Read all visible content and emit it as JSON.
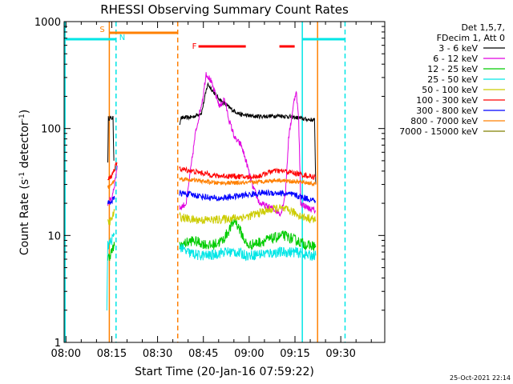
{
  "chart_data": {
    "type": "line",
    "title": "RHESSI Observing Summary Count Rates",
    "xlabel": "Start Time (20-Jan-16 07:59:22)",
    "ylabel_main": "Count Rate (s",
    "ylabel_sup1": "-1",
    "ylabel_mid": " detector",
    "ylabel_sup2": "-1",
    "ylabel_end": ")",
    "yscale": "log",
    "ylim": [
      1,
      1000
    ],
    "xlim": [
      0,
      105
    ],
    "x_units": "minutes after 07:59:22",
    "x_ticks": [
      {
        "t": 0.6,
        "label": "08:00"
      },
      {
        "t": 15.6,
        "label": "08:15"
      },
      {
        "t": 30.6,
        "label": "08:30"
      },
      {
        "t": 45.6,
        "label": "08:45"
      },
      {
        "t": 60.6,
        "label": "09:00"
      },
      {
        "t": 75.6,
        "label": "09:15"
      },
      {
        "t": 90.6,
        "label": "09:30"
      }
    ],
    "y_ticks": [
      {
        "v": 1,
        "label": "1"
      },
      {
        "v": 10,
        "label": "10"
      },
      {
        "v": 100,
        "label": "100"
      },
      {
        "v": 1000,
        "label": "1000"
      }
    ],
    "legend": {
      "header1": "Det 1,5,7,",
      "header2": "FDecim 1, Att 0",
      "placement": "right",
      "entries": [
        {
          "label": "3 - 6 keV",
          "color": "#000000"
        },
        {
          "label": "6 - 12 keV",
          "color": "#e000e0"
        },
        {
          "label": "12 - 25 keV",
          "color": "#00cc00"
        },
        {
          "label": "25 - 50 keV",
          "color": "#00e6e6"
        },
        {
          "label": "50 - 100 keV",
          "color": "#cccc00"
        },
        {
          "label": "100 - 300 keV",
          "color": "#ff0000"
        },
        {
          "label": "300 - 800 keV",
          "color": "#0000ff"
        },
        {
          "label": "800 - 7000 keV",
          "color": "#ff8000"
        },
        {
          "label": "7000 - 15000 keV",
          "color": "#808000"
        }
      ]
    },
    "series": [
      {
        "band": "3 - 6 keV",
        "color": "#000000",
        "noise": 0.02,
        "segments": [
          [
            [
              14.3,
              50
            ],
            [
              14.5,
              125
            ],
            [
              16.0,
              125
            ],
            [
              16.3,
              50
            ]
          ],
          [
            [
              37.8,
              110
            ],
            [
              38.2,
              125
            ],
            [
              42,
              128
            ],
            [
              45,
              140
            ],
            [
              47,
              260
            ],
            [
              48,
              240
            ],
            [
              50,
              200
            ],
            [
              52,
              175
            ],
            [
              55,
              150
            ],
            [
              58,
              135
            ],
            [
              62,
              130
            ],
            [
              66,
              130
            ],
            [
              70,
              132
            ],
            [
              73,
              130
            ],
            [
              76.5,
              126
            ],
            [
              79,
              122
            ],
            [
              82,
              120
            ],
            [
              82.4,
              30
            ]
          ]
        ]
      },
      {
        "band": "6 - 12 keV",
        "color": "#e000e0",
        "noise": 0.03,
        "segments": [
          [
            [
              14.3,
              20
            ],
            [
              15.5,
              22
            ],
            [
              16.5,
              30
            ],
            [
              17.4,
              45
            ]
          ],
          [
            [
              37.8,
              18
            ],
            [
              40,
              20
            ],
            [
              43,
              90
            ],
            [
              45.5,
              200
            ],
            [
              46.5,
              330
            ],
            [
              48,
              280
            ],
            [
              49.5,
              210
            ],
            [
              51,
              160
            ],
            [
              52.5,
              190
            ],
            [
              54,
              120
            ],
            [
              56,
              80
            ],
            [
              58,
              70
            ],
            [
              60,
              45
            ],
            [
              61.5,
              30
            ],
            [
              64,
              20
            ],
            [
              68,
              18
            ],
            [
              71,
              16
            ],
            [
              72.5,
              25
            ],
            [
              73.5,
              80
            ],
            [
              75,
              160
            ],
            [
              76,
              230
            ],
            [
              76.8,
              120
            ],
            [
              77.5,
              20
            ],
            [
              80,
              18
            ],
            [
              82.4,
              17
            ]
          ]
        ]
      },
      {
        "band": "12 - 25 keV",
        "color": "#00cc00",
        "noise": 0.05,
        "segments": [
          [
            [
              14.3,
              6
            ],
            [
              15.5,
              7
            ],
            [
              16.5,
              8
            ]
          ],
          [
            [
              37.8,
              8
            ],
            [
              42,
              9
            ],
            [
              48,
              8
            ],
            [
              52,
              9
            ],
            [
              56,
              14
            ],
            [
              60,
              8
            ],
            [
              66,
              9
            ],
            [
              72,
              10
            ],
            [
              76,
              9
            ],
            [
              80,
              8
            ],
            [
              82.4,
              8
            ]
          ]
        ]
      },
      {
        "band": "25 - 50 keV",
        "color": "#00e6e6",
        "noise": 0.05,
        "segments": [
          [
            [
              14.0,
              2
            ],
            [
              14.3,
              8
            ],
            [
              15.5,
              9
            ],
            [
              16.5,
              10
            ]
          ],
          [
            [
              37.8,
              8
            ],
            [
              40,
              7
            ],
            [
              44,
              6.5
            ],
            [
              48,
              6.5
            ],
            [
              52,
              7
            ],
            [
              56,
              7
            ],
            [
              60,
              6.5
            ],
            [
              66,
              6.8
            ],
            [
              72,
              7
            ],
            [
              76,
              7
            ],
            [
              80,
              6.5
            ],
            [
              82.4,
              6.5
            ]
          ]
        ]
      },
      {
        "band": "50 - 100 keV",
        "color": "#cccc00",
        "noise": 0.04,
        "segments": [
          [
            [
              14.3,
              13
            ],
            [
              15.5,
              14
            ],
            [
              16.5,
              17
            ]
          ],
          [
            [
              37.8,
              15
            ],
            [
              42,
              14
            ],
            [
              46,
              14
            ],
            [
              50,
              14
            ],
            [
              55,
              14.5
            ],
            [
              60,
              15
            ],
            [
              66,
              17
            ],
            [
              70,
              18
            ],
            [
              74,
              17
            ],
            [
              78,
              15
            ],
            [
              82.4,
              14
            ]
          ]
        ]
      },
      {
        "band": "100 - 300 keV",
        "color": "#ff0000",
        "noise": 0.025,
        "segments": [
          [
            [
              14.3,
              33
            ],
            [
              15.5,
              36
            ],
            [
              16.5,
              42
            ],
            [
              17.4,
              48
            ]
          ],
          [
            [
              37.8,
              42
            ],
            [
              42,
              40
            ],
            [
              46,
              38
            ],
            [
              50,
              36
            ],
            [
              55,
              36
            ],
            [
              60,
              35
            ],
            [
              64,
              36
            ],
            [
              68,
              40
            ],
            [
              72,
              40
            ],
            [
              76,
              38
            ],
            [
              80,
              36
            ],
            [
              82.4,
              35
            ]
          ]
        ]
      },
      {
        "band": "300 - 800 keV",
        "color": "#0000ff",
        "noise": 0.03,
        "segments": [
          [
            [
              14.3,
              20
            ],
            [
              15.5,
              21
            ],
            [
              16.5,
              22
            ]
          ],
          [
            [
              37.8,
              25
            ],
            [
              42,
              24
            ],
            [
              46,
              23
            ],
            [
              50,
              22
            ],
            [
              55,
              23
            ],
            [
              60,
              24
            ],
            [
              65,
              25
            ],
            [
              70,
              25
            ],
            [
              75,
              24
            ],
            [
              80,
              22
            ],
            [
              82.4,
              21
            ]
          ]
        ]
      },
      {
        "band": "800 - 7000 keV",
        "color": "#ff8000",
        "noise": 0.02,
        "segments": [
          [
            [
              14.3,
              28
            ],
            [
              15.5,
              30
            ],
            [
              16.5,
              33
            ]
          ],
          [
            [
              37.8,
              34
            ],
            [
              42,
              33
            ],
            [
              46,
              32
            ],
            [
              50,
              31
            ],
            [
              55,
              31
            ],
            [
              60,
              31
            ],
            [
              65,
              32
            ],
            [
              70,
              33
            ],
            [
              75,
              32
            ],
            [
              80,
              31
            ],
            [
              82.4,
              30
            ]
          ]
        ]
      }
    ],
    "markers": {
      "saa": [
        {
          "label": "S",
          "start": 14.8,
          "end": 37.2,
          "color": "#ff8000"
        }
      ],
      "night": [
        {
          "label": "N",
          "start": 0,
          "end": 17.0,
          "color": "#00e6e6"
        },
        {
          "label": "",
          "start": 78.0,
          "end": 92.0,
          "color": "#00e6e6"
        }
      ],
      "flare": [
        {
          "label": "F",
          "start": 44.0,
          "end": 59.5,
          "color": "#ff0000"
        },
        {
          "label": "",
          "start": 70.5,
          "end": 75.5,
          "color": "#ff0000"
        }
      ],
      "vlines": [
        {
          "t": 14.8,
          "color": "#ff8000",
          "style": "solid"
        },
        {
          "t": 17.0,
          "color": "#00e6e6",
          "style": "dashed"
        },
        {
          "t": 37.2,
          "color": "#ff8000",
          "style": "dashed"
        },
        {
          "t": 78.0,
          "color": "#00e6e6",
          "style": "solid"
        },
        {
          "t": 83.0,
          "color": "#ff8000",
          "style": "solid"
        },
        {
          "t": 92.0,
          "color": "#00e6e6",
          "style": "dashed"
        },
        {
          "t": 0.3,
          "color": "#00e6e6",
          "style": "solid"
        }
      ]
    },
    "timestamp": "25-Oct-2021 22:14"
  }
}
